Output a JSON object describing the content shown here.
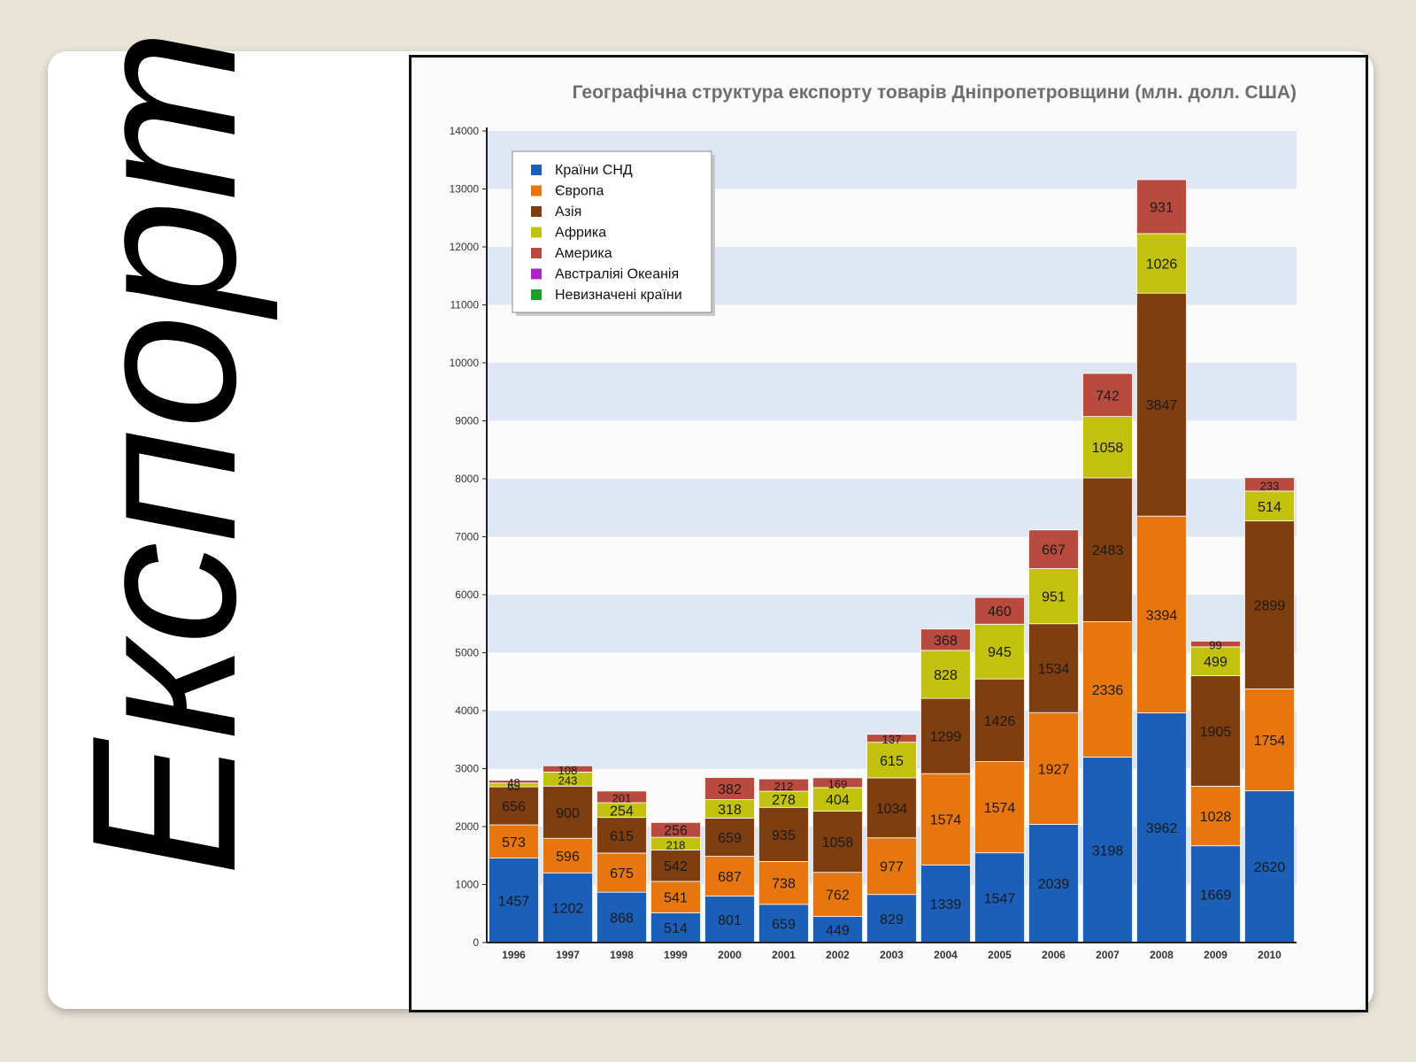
{
  "slide": {
    "title": "Експорт"
  },
  "chart_data": {
    "type": "bar",
    "stacked": true,
    "title": "Географічна структура експорту товарів Дніпропетровщини (млн. долл. США)",
    "xlabel": "",
    "ylabel": "",
    "ylim": [
      0,
      14000
    ],
    "yticks": [
      0,
      1000,
      2000,
      3000,
      4000,
      5000,
      6000,
      7000,
      8000,
      9000,
      10000,
      11000,
      12000,
      13000,
      14000
    ],
    "grid": "alternating bands",
    "legend_position": "top-left",
    "categories": [
      "1996",
      "1997",
      "1998",
      "1999",
      "2000",
      "2001",
      "2002",
      "2003",
      "2004",
      "2005",
      "2006",
      "2007",
      "2008",
      "2009",
      "2010"
    ],
    "series": [
      {
        "name": "Країни СНД",
        "color": "#1c5fb8",
        "values": [
          1457,
          1202,
          868,
          514,
          801,
          659,
          449,
          829,
          1339,
          1547,
          2039,
          3198,
          3962,
          1669,
          2620
        ]
      },
      {
        "name": "Європа",
        "color": "#e8760e",
        "values": [
          573,
          596,
          675,
          541,
          687,
          738,
          762,
          977,
          1574,
          1574,
          1927,
          2336,
          3394,
          1028,
          1754
        ]
      },
      {
        "name": "Азія",
        "color": "#7e3e10",
        "values": [
          656,
          900,
          615,
          542,
          659,
          935,
          1058,
          1034,
          1299,
          1426,
          1534,
          2483,
          3847,
          1905,
          2899
        ]
      },
      {
        "name": "Африка",
        "color": "#c2c20e",
        "values": [
          65,
          243,
          254,
          218,
          318,
          278,
          404,
          615,
          828,
          945,
          951,
          1058,
          1026,
          499,
          514
        ]
      },
      {
        "name": "Америка",
        "color": "#b84b3e",
        "values": [
          48,
          108,
          201,
          256,
          382,
          212,
          169,
          137,
          368,
          460,
          667,
          742,
          931,
          99,
          233
        ]
      },
      {
        "name": "Австраліяі Океанія",
        "color": "#b21fc7",
        "values": [
          0,
          0,
          0,
          0,
          0,
          0,
          0,
          0,
          0,
          0,
          0,
          0,
          0,
          0,
          0
        ]
      },
      {
        "name": "Невизначені країни",
        "color": "#1e9e2a",
        "values": [
          0,
          0,
          0,
          0,
          0,
          0,
          0,
          0,
          0,
          0,
          0,
          0,
          0,
          0,
          0
        ]
      }
    ]
  }
}
